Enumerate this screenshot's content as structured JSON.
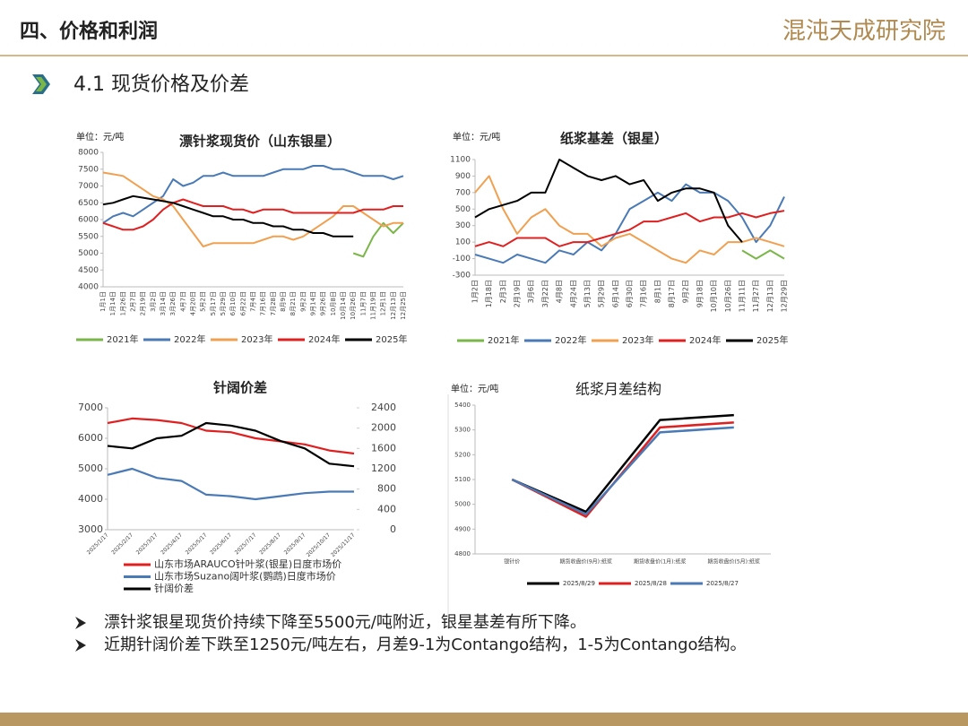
{
  "header": {
    "title": "四、价格和利润",
    "logo": "混沌天成研究院"
  },
  "section": "4.1 现货价格及价差",
  "bullets": [
    "漂针浆银星现货价持续下降至5500元/吨附近，银星基差有所下降。",
    "近期针阔价差下跌至1250元/吨左右，月差9-1为Contango结构，1-5为Contango结构。"
  ],
  "chart_data": [
    {
      "type": "line",
      "title": "漂针浆现货价（山东银星）",
      "unit_label": "单位：元/吨",
      "legend": "bottom",
      "categories": [
        "1月1日",
        "1月14日",
        "1月26日",
        "2月7日",
        "2月19日",
        "3月2日",
        "3月14日",
        "3月26日",
        "4月7日",
        "4月20日",
        "5月2日",
        "5月17日",
        "5月29日",
        "6月10日",
        "6月22日",
        "7月4日",
        "7月16日",
        "7月28日",
        "8月9日",
        "8月21日",
        "9月2日",
        "9月14日",
        "9月26日",
        "10月8日",
        "10月14日",
        "10月26日",
        "11月7日",
        "11月19日",
        "12月1日",
        "12月13日",
        "12月25日"
      ],
      "ylim": [
        4000,
        8000
      ],
      "yticks": [
        4000,
        4500,
        5000,
        5500,
        6000,
        6500,
        7000,
        7500,
        8000
      ],
      "series": [
        {
          "name": "2021年",
          "color": "#7ab648",
          "values": [
            null,
            null,
            null,
            null,
            null,
            null,
            null,
            null,
            null,
            null,
            null,
            null,
            null,
            null,
            null,
            null,
            null,
            null,
            null,
            null,
            null,
            null,
            null,
            null,
            null,
            5000,
            4900,
            5500,
            5900,
            5600,
            5900
          ]
        },
        {
          "name": "2022年",
          "color": "#4a7ab5",
          "values": [
            5900,
            6100,
            6200,
            6100,
            6300,
            6500,
            6700,
            7200,
            7000,
            7100,
            7300,
            7300,
            7400,
            7300,
            7300,
            7300,
            7300,
            7400,
            7500,
            7500,
            7500,
            7600,
            7600,
            7500,
            7500,
            7400,
            7300,
            7300,
            7300,
            7200,
            7300
          ]
        },
        {
          "name": "2023年",
          "color": "#f0a050",
          "values": [
            7400,
            7350,
            7300,
            7100,
            6900,
            6700,
            6600,
            6400,
            6000,
            5600,
            5200,
            5300,
            5300,
            5300,
            5300,
            5300,
            5400,
            5500,
            5500,
            5400,
            5500,
            5700,
            5900,
            6100,
            6400,
            6400,
            6200,
            6000,
            5800,
            5900,
            5900
          ]
        },
        {
          "name": "2024年",
          "color": "#e02020",
          "values": [
            5900,
            5800,
            5700,
            5700,
            5800,
            6000,
            6300,
            6500,
            6600,
            6500,
            6400,
            6400,
            6400,
            6300,
            6300,
            6200,
            6300,
            6300,
            6300,
            6200,
            6200,
            6200,
            6200,
            6200,
            6200,
            6200,
            6300,
            6300,
            6300,
            6400,
            6400
          ]
        },
        {
          "name": "2025年",
          "color": "#000000",
          "values": [
            6450,
            6500,
            6600,
            6700,
            6650,
            6600,
            6550,
            6500,
            6400,
            6300,
            6200,
            6100,
            6100,
            6000,
            6000,
            5900,
            5900,
            5800,
            5800,
            5700,
            5700,
            5600,
            5600,
            5500,
            5500,
            5500,
            null,
            null,
            null,
            null,
            null
          ]
        }
      ]
    },
    {
      "type": "line",
      "title": "纸浆基差（银星）",
      "unit_label": "单位：元/吨",
      "legend": "bottom",
      "categories": [
        "1月2日",
        "1月18日",
        "2月3日",
        "2月19日",
        "3月6日",
        "3月22日",
        "4月8日",
        "4月24日",
        "5月13日",
        "5月29日",
        "6月14日",
        "6月30日",
        "7月16日",
        "8月1日",
        "8月17日",
        "9月2日",
        "9月18日",
        "10月10日",
        "10月26日",
        "11月11日",
        "11月27日",
        "12月13日",
        "12月29日"
      ],
      "ylim": [
        -300,
        1100
      ],
      "yticks": [
        -300,
        -100,
        100,
        300,
        500,
        700,
        900,
        1100
      ],
      "series": [
        {
          "name": "2021年",
          "color": "#7ab648",
          "values": [
            null,
            null,
            null,
            null,
            null,
            null,
            null,
            null,
            null,
            null,
            null,
            null,
            null,
            null,
            null,
            null,
            null,
            null,
            null,
            0,
            -100,
            0,
            -100
          ]
        },
        {
          "name": "2022年",
          "color": "#4a7ab5",
          "values": [
            -50,
            -100,
            -150,
            -50,
            -100,
            -150,
            0,
            -50,
            100,
            0,
            200,
            500,
            600,
            700,
            600,
            800,
            700,
            700,
            600,
            400,
            100,
            300,
            650
          ]
        },
        {
          "name": "2023年",
          "color": "#f0a050",
          "values": [
            700,
            900,
            500,
            200,
            400,
            500,
            300,
            200,
            200,
            50,
            150,
            200,
            100,
            0,
            -100,
            -150,
            0,
            -50,
            100,
            100,
            150,
            100,
            50
          ]
        },
        {
          "name": "2024年",
          "color": "#e02020",
          "values": [
            50,
            100,
            50,
            150,
            150,
            150,
            50,
            100,
            100,
            150,
            200,
            250,
            350,
            350,
            400,
            450,
            350,
            400,
            400,
            450,
            400,
            450,
            480
          ]
        },
        {
          "name": "2025年",
          "color": "#000000",
          "values": [
            400,
            500,
            550,
            600,
            700,
            700,
            1100,
            1000,
            900,
            850,
            900,
            800,
            850,
            600,
            700,
            750,
            750,
            700,
            300,
            100,
            null,
            null,
            null
          ]
        }
      ]
    },
    {
      "type": "line",
      "title": "针阔价差",
      "legend": "bottom-left",
      "categories": [
        "2025/1/17",
        "2025/2/17",
        "2025/3/17",
        "2025/4/17",
        "2025/5/17",
        "2025/6/17",
        "2025/7/17",
        "2025/8/17",
        "2025/9/17",
        "2025/10/17",
        "2025/11/17"
      ],
      "ylim": [
        3000,
        7000
      ],
      "yticks": [
        3000,
        4000,
        5000,
        6000,
        7000
      ],
      "y2lim": [
        0,
        2400
      ],
      "y2ticks": [
        0,
        400,
        800,
        1200,
        1600,
        2000,
        2400
      ],
      "series": [
        {
          "name": "山东市场ARAUCO针叶浆(银星)日度市场价",
          "color": "#e02020",
          "values": [
            6500,
            6650,
            6600,
            6500,
            6250,
            6200,
            6000,
            5900,
            5800,
            5600,
            5500
          ]
        },
        {
          "name": "山东市场Suzano阔叶浆(鹦鹉)日度市场价",
          "color": "#4a7ab5",
          "values": [
            4800,
            5000,
            4700,
            4600,
            4150,
            4100,
            4000,
            4100,
            4200,
            4250,
            4250
          ]
        },
        {
          "name": "针阔价差",
          "color": "#000000",
          "axis": "y2",
          "values": [
            1650,
            1600,
            1800,
            1850,
            2100,
            2050,
            1950,
            1750,
            1600,
            1300,
            1250
          ]
        }
      ]
    },
    {
      "type": "line",
      "title": "纸浆月差结构",
      "unit_label": "单位：元/吨",
      "legend": "bottom",
      "categories": [
        "银针价",
        "期货收盘价(9月):纸浆",
        "期货收盘价(1月):纸浆",
        "期货收盘价(5月):纸浆"
      ],
      "ylim": [
        4800,
        5400
      ],
      "yticks": [
        4800,
        4900,
        5000,
        5100,
        5200,
        5300,
        5400
      ],
      "series": [
        {
          "name": "2025/8/29",
          "color": "#000000",
          "values": [
            5100,
            4970,
            5340,
            5360
          ]
        },
        {
          "name": "2025/8/28",
          "color": "#e02020",
          "values": [
            5100,
            4950,
            5310,
            5330
          ]
        },
        {
          "name": "2025/8/27",
          "color": "#4a7ab5",
          "values": [
            5100,
            4960,
            5290,
            5310
          ]
        }
      ]
    }
  ]
}
